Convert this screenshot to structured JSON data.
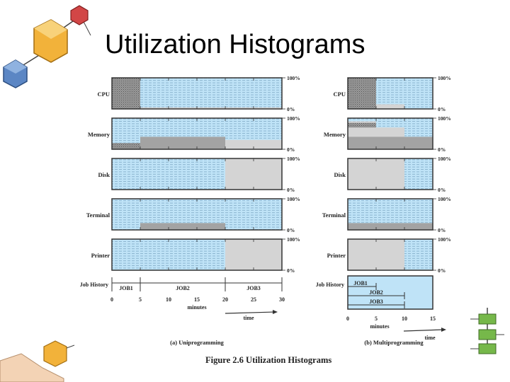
{
  "slide": {
    "title": "Utilization Histograms"
  },
  "figure": {
    "caption": "Figure 2.6 Utilization Histograms",
    "percent_high": "100%",
    "percent_low": "0%",
    "x_unit": "minutes",
    "time_label": "time"
  },
  "colors": {
    "background": "#bfe3f7",
    "busy": "#a3a3a3",
    "light": "#d4d4d4",
    "cpu_busy": "#9a9a9a",
    "frame": "#333333"
  },
  "chart_data": [
    {
      "type": "bar",
      "title": "(a) Uniprogramming",
      "xlabel": "minutes",
      "xlim": [
        0,
        30
      ],
      "x_ticks": [
        0,
        5,
        10,
        15,
        20,
        25,
        30
      ],
      "ylim": [
        0,
        100
      ],
      "rows": [
        {
          "label": "CPU",
          "segments": [
            {
              "from": 0,
              "to": 5,
              "pct": 100,
              "shade": "cpu_busy"
            },
            {
              "from": 5,
              "to": 20,
              "pct": 5,
              "shade": "light"
            },
            {
              "from": 20,
              "to": 30,
              "pct": 5,
              "shade": "light"
            }
          ]
        },
        {
          "label": "Memory",
          "segments": [
            {
              "from": 0,
              "to": 5,
              "pct": 20,
              "shade": "cpu_busy"
            },
            {
              "from": 5,
              "to": 20,
              "pct": 40,
              "shade": "busy"
            },
            {
              "from": 20,
              "to": 30,
              "pct": 30,
              "shade": "light"
            }
          ]
        },
        {
          "label": "Disk",
          "segments": [
            {
              "from": 20,
              "to": 30,
              "pct": 100,
              "shade": "light"
            }
          ]
        },
        {
          "label": "Terminal",
          "segments": [
            {
              "from": 5,
              "to": 20,
              "pct": 22,
              "shade": "busy"
            }
          ]
        },
        {
          "label": "Printer",
          "segments": [
            {
              "from": 20,
              "to": 30,
              "pct": 100,
              "shade": "light"
            }
          ]
        }
      ],
      "job_history": {
        "label": "Job History",
        "jobs": [
          {
            "name": "JOB1",
            "from": 0,
            "to": 5
          },
          {
            "name": "JOB2",
            "from": 5,
            "to": 20
          },
          {
            "name": "JOB3",
            "from": 20,
            "to": 30
          }
        ]
      }
    },
    {
      "type": "bar",
      "title": "(b) Multiprogramming",
      "xlabel": "minutes",
      "xlim": [
        0,
        15
      ],
      "x_ticks": [
        0,
        5,
        10,
        15
      ],
      "ylim": [
        0,
        100
      ],
      "rows": [
        {
          "label": "CPU",
          "segments": [
            {
              "from": 0,
              "to": 5,
              "pct": 100,
              "shade": "cpu_busy"
            },
            {
              "from": 5,
              "to": 10,
              "pct": 15,
              "shade": "light"
            }
          ]
        },
        {
          "label": "Memory",
          "segments": [
            {
              "from": 0,
              "to": 5,
              "pct": 90,
              "shade": "light"
            },
            {
              "from": 5,
              "to": 10,
              "pct": 70,
              "shade": "light"
            },
            {
              "from": 0,
              "to": 15,
              "pct": 40,
              "shade": "busy"
            },
            {
              "from": 0,
              "to": 5,
              "pct": 85,
              "shade": "cpu_busy",
              "band": 15
            }
          ]
        },
        {
          "label": "Disk",
          "segments": [
            {
              "from": 0,
              "to": 10,
              "pct": 100,
              "shade": "light"
            }
          ]
        },
        {
          "label": "Terminal",
          "segments": [
            {
              "from": 0,
              "to": 15,
              "pct": 22,
              "shade": "busy"
            }
          ]
        },
        {
          "label": "Printer",
          "segments": [
            {
              "from": 0,
              "to": 10,
              "pct": 100,
              "shade": "light"
            }
          ]
        }
      ],
      "job_history": {
        "label": "Job History",
        "jobs": [
          {
            "name": "JOB1",
            "from": 0,
            "to": 5
          },
          {
            "name": "JOB2",
            "from": 0,
            "to": 10
          },
          {
            "name": "JOB3",
            "from": 0,
            "to": 10
          }
        ]
      }
    }
  ]
}
